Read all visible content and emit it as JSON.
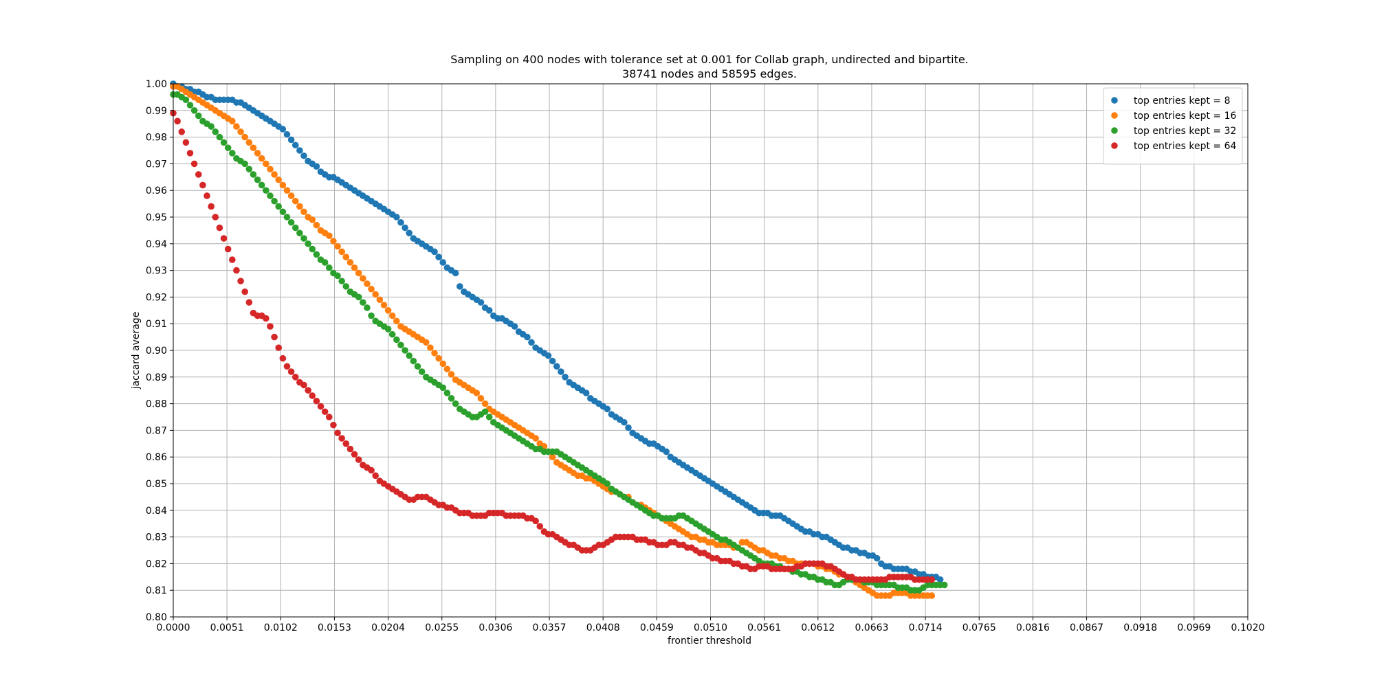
{
  "chart_data": {
    "type": "scatter",
    "title": "Sampling on 400 nodes with tolerance set at 0.001 for Collab graph, undirected and bipartite.",
    "subtitle": "38741 nodes and 58595 edges.",
    "xlabel": "frontier threshold",
    "ylabel": "jaccard average",
    "xlim": [
      0.0,
      0.102
    ],
    "ylim": [
      0.8,
      1.0
    ],
    "xticks": [
      "0.0000",
      "0.0051",
      "0.0102",
      "0.0153",
      "0.0204",
      "0.0255",
      "0.0306",
      "0.0357",
      "0.0408",
      "0.0459",
      "0.0510",
      "0.0561",
      "0.0612",
      "0.0663",
      "0.0714",
      "0.0765",
      "0.0816",
      "0.0867",
      "0.0918",
      "0.0969",
      "0.1020"
    ],
    "yticks": [
      "0.80",
      "0.81",
      "0.82",
      "0.83",
      "0.84",
      "0.85",
      "0.86",
      "0.87",
      "0.88",
      "0.89",
      "0.90",
      "0.91",
      "0.92",
      "0.93",
      "0.94",
      "0.95",
      "0.96",
      "0.97",
      "0.98",
      "0.99",
      "1.00"
    ],
    "grid": true,
    "legend_position": "top-right",
    "x_start": 0.0,
    "x_step": 0.0004,
    "series": [
      {
        "name": "top entries kept = 8",
        "color": "#1f77b4",
        "values": [
          1.0,
          0.999,
          0.999,
          0.998,
          0.998,
          0.997,
          0.997,
          0.996,
          0.995,
          0.995,
          0.994,
          0.994,
          0.994,
          0.994,
          0.994,
          0.993,
          0.993,
          0.992,
          0.991,
          0.99,
          0.989,
          0.988,
          0.987,
          0.986,
          0.985,
          0.984,
          0.983,
          0.981,
          0.979,
          0.977,
          0.975,
          0.973,
          0.971,
          0.97,
          0.969,
          0.967,
          0.966,
          0.965,
          0.965,
          0.964,
          0.963,
          0.962,
          0.961,
          0.96,
          0.959,
          0.958,
          0.957,
          0.956,
          0.955,
          0.954,
          0.953,
          0.952,
          0.951,
          0.95,
          0.948,
          0.946,
          0.944,
          0.942,
          0.941,
          0.94,
          0.939,
          0.938,
          0.937,
          0.935,
          0.933,
          0.931,
          0.93,
          0.929,
          0.924,
          0.922,
          0.921,
          0.92,
          0.919,
          0.918,
          0.916,
          0.915,
          0.913,
          0.912,
          0.912,
          0.911,
          0.91,
          0.909,
          0.907,
          0.906,
          0.905,
          0.903,
          0.901,
          0.9,
          0.899,
          0.898,
          0.896,
          0.894,
          0.892,
          0.89,
          0.888,
          0.887,
          0.886,
          0.885,
          0.884,
          0.882,
          0.881,
          0.88,
          0.879,
          0.878,
          0.876,
          0.875,
          0.874,
          0.873,
          0.871,
          0.869,
          0.868,
          0.867,
          0.866,
          0.865,
          0.865,
          0.864,
          0.863,
          0.862,
          0.86,
          0.859,
          0.858,
          0.857,
          0.856,
          0.855,
          0.854,
          0.853,
          0.852,
          0.851,
          0.85,
          0.849,
          0.848,
          0.847,
          0.846,
          0.845,
          0.844,
          0.843,
          0.842,
          0.841,
          0.84,
          0.839,
          0.839,
          0.839,
          0.838,
          0.838,
          0.838,
          0.837,
          0.836,
          0.835,
          0.834,
          0.833,
          0.832,
          0.832,
          0.831,
          0.831,
          0.83,
          0.83,
          0.829,
          0.828,
          0.827,
          0.826,
          0.826,
          0.825,
          0.825,
          0.824,
          0.824,
          0.823,
          0.823,
          0.822,
          0.82,
          0.819,
          0.819,
          0.818,
          0.818,
          0.818,
          0.818,
          0.817,
          0.817,
          0.816,
          0.816,
          0.815,
          0.815,
          0.815,
          0.814
        ]
      },
      {
        "name": "top entries kept = 16",
        "color": "#ff7f0e",
        "values": [
          0.999,
          0.999,
          0.998,
          0.997,
          0.996,
          0.995,
          0.994,
          0.993,
          0.992,
          0.991,
          0.99,
          0.989,
          0.988,
          0.987,
          0.986,
          0.984,
          0.982,
          0.98,
          0.978,
          0.976,
          0.974,
          0.972,
          0.97,
          0.968,
          0.966,
          0.964,
          0.962,
          0.96,
          0.958,
          0.956,
          0.954,
          0.952,
          0.95,
          0.949,
          0.947,
          0.945,
          0.944,
          0.943,
          0.941,
          0.939,
          0.937,
          0.935,
          0.933,
          0.931,
          0.929,
          0.927,
          0.925,
          0.923,
          0.921,
          0.919,
          0.917,
          0.915,
          0.913,
          0.911,
          0.909,
          0.908,
          0.907,
          0.906,
          0.905,
          0.904,
          0.903,
          0.901,
          0.899,
          0.897,
          0.895,
          0.893,
          0.891,
          0.889,
          0.888,
          0.887,
          0.886,
          0.885,
          0.884,
          0.882,
          0.88,
          0.878,
          0.877,
          0.876,
          0.875,
          0.874,
          0.873,
          0.872,
          0.871,
          0.87,
          0.869,
          0.868,
          0.867,
          0.865,
          0.864,
          0.862,
          0.86,
          0.858,
          0.857,
          0.856,
          0.855,
          0.854,
          0.853,
          0.853,
          0.852,
          0.852,
          0.851,
          0.85,
          0.849,
          0.848,
          0.847,
          0.847,
          0.846,
          0.845,
          0.845,
          0.843,
          0.842,
          0.842,
          0.841,
          0.84,
          0.839,
          0.838,
          0.837,
          0.836,
          0.835,
          0.834,
          0.833,
          0.832,
          0.831,
          0.83,
          0.83,
          0.829,
          0.829,
          0.828,
          0.828,
          0.827,
          0.827,
          0.827,
          0.827,
          0.826,
          0.826,
          0.828,
          0.828,
          0.827,
          0.826,
          0.825,
          0.825,
          0.824,
          0.823,
          0.823,
          0.822,
          0.822,
          0.821,
          0.821,
          0.82,
          0.82,
          0.82,
          0.82,
          0.82,
          0.819,
          0.819,
          0.818,
          0.818,
          0.817,
          0.816,
          0.816,
          0.815,
          0.814,
          0.813,
          0.812,
          0.811,
          0.81,
          0.809,
          0.808,
          0.808,
          0.808,
          0.808,
          0.809,
          0.809,
          0.809,
          0.809,
          0.808,
          0.808,
          0.808,
          0.808,
          0.808,
          0.808
        ]
      },
      {
        "name": "top entries kept = 32",
        "color": "#2ca02c",
        "values": [
          0.996,
          0.996,
          0.995,
          0.994,
          0.992,
          0.99,
          0.988,
          0.986,
          0.985,
          0.984,
          0.982,
          0.98,
          0.978,
          0.976,
          0.974,
          0.972,
          0.971,
          0.97,
          0.968,
          0.966,
          0.964,
          0.962,
          0.96,
          0.958,
          0.956,
          0.954,
          0.952,
          0.95,
          0.948,
          0.946,
          0.944,
          0.942,
          0.94,
          0.938,
          0.936,
          0.934,
          0.933,
          0.931,
          0.929,
          0.928,
          0.926,
          0.924,
          0.922,
          0.921,
          0.92,
          0.918,
          0.916,
          0.913,
          0.911,
          0.91,
          0.909,
          0.908,
          0.906,
          0.904,
          0.902,
          0.9,
          0.898,
          0.896,
          0.894,
          0.892,
          0.89,
          0.889,
          0.888,
          0.887,
          0.886,
          0.884,
          0.882,
          0.88,
          0.878,
          0.877,
          0.876,
          0.875,
          0.875,
          0.876,
          0.877,
          0.875,
          0.873,
          0.872,
          0.871,
          0.87,
          0.869,
          0.868,
          0.867,
          0.866,
          0.865,
          0.864,
          0.863,
          0.863,
          0.862,
          0.862,
          0.862,
          0.862,
          0.861,
          0.86,
          0.859,
          0.858,
          0.857,
          0.856,
          0.855,
          0.854,
          0.853,
          0.852,
          0.851,
          0.85,
          0.848,
          0.847,
          0.846,
          0.845,
          0.844,
          0.843,
          0.842,
          0.841,
          0.84,
          0.839,
          0.838,
          0.838,
          0.837,
          0.837,
          0.837,
          0.837,
          0.838,
          0.838,
          0.837,
          0.836,
          0.835,
          0.834,
          0.833,
          0.832,
          0.831,
          0.83,
          0.829,
          0.829,
          0.828,
          0.827,
          0.826,
          0.825,
          0.824,
          0.823,
          0.822,
          0.821,
          0.82,
          0.82,
          0.82,
          0.819,
          0.819,
          0.818,
          0.818,
          0.817,
          0.817,
          0.816,
          0.816,
          0.815,
          0.815,
          0.814,
          0.814,
          0.813,
          0.813,
          0.812,
          0.812,
          0.813,
          0.814,
          0.814,
          0.814,
          0.814,
          0.813,
          0.813,
          0.813,
          0.812,
          0.812,
          0.812,
          0.812,
          0.812,
          0.811,
          0.811,
          0.811,
          0.81,
          0.81,
          0.81,
          0.811,
          0.812,
          0.812,
          0.812,
          0.812,
          0.812
        ]
      },
      {
        "name": "top entries kept = 64",
        "color": "#d62728",
        "values": [
          0.989,
          0.986,
          0.982,
          0.978,
          0.974,
          0.97,
          0.966,
          0.962,
          0.958,
          0.954,
          0.95,
          0.946,
          0.942,
          0.938,
          0.934,
          0.93,
          0.926,
          0.922,
          0.918,
          0.914,
          0.913,
          0.913,
          0.912,
          0.909,
          0.905,
          0.901,
          0.897,
          0.894,
          0.892,
          0.89,
          0.888,
          0.887,
          0.885,
          0.883,
          0.881,
          0.879,
          0.877,
          0.875,
          0.872,
          0.869,
          0.867,
          0.865,
          0.863,
          0.861,
          0.859,
          0.857,
          0.856,
          0.855,
          0.853,
          0.851,
          0.85,
          0.849,
          0.848,
          0.847,
          0.846,
          0.845,
          0.844,
          0.844,
          0.845,
          0.845,
          0.845,
          0.844,
          0.843,
          0.842,
          0.842,
          0.841,
          0.841,
          0.84,
          0.839,
          0.839,
          0.839,
          0.838,
          0.838,
          0.838,
          0.838,
          0.839,
          0.839,
          0.839,
          0.839,
          0.838,
          0.838,
          0.838,
          0.838,
          0.838,
          0.837,
          0.837,
          0.836,
          0.834,
          0.832,
          0.831,
          0.831,
          0.83,
          0.829,
          0.828,
          0.827,
          0.827,
          0.826,
          0.825,
          0.825,
          0.825,
          0.826,
          0.827,
          0.827,
          0.828,
          0.829,
          0.83,
          0.83,
          0.83,
          0.83,
          0.83,
          0.829,
          0.829,
          0.829,
          0.828,
          0.828,
          0.827,
          0.827,
          0.827,
          0.828,
          0.828,
          0.827,
          0.827,
          0.826,
          0.826,
          0.825,
          0.824,
          0.824,
          0.823,
          0.822,
          0.822,
          0.821,
          0.821,
          0.821,
          0.82,
          0.82,
          0.819,
          0.819,
          0.818,
          0.818,
          0.819,
          0.819,
          0.819,
          0.818,
          0.818,
          0.818,
          0.818,
          0.818,
          0.818,
          0.819,
          0.819,
          0.82,
          0.82,
          0.82,
          0.82,
          0.82,
          0.819,
          0.819,
          0.818,
          0.817,
          0.816,
          0.815,
          0.815,
          0.814,
          0.814,
          0.814,
          0.814,
          0.814,
          0.814,
          0.814,
          0.814,
          0.815,
          0.815,
          0.815,
          0.815,
          0.815,
          0.815,
          0.814,
          0.814,
          0.814,
          0.814,
          0.814
        ]
      }
    ]
  }
}
